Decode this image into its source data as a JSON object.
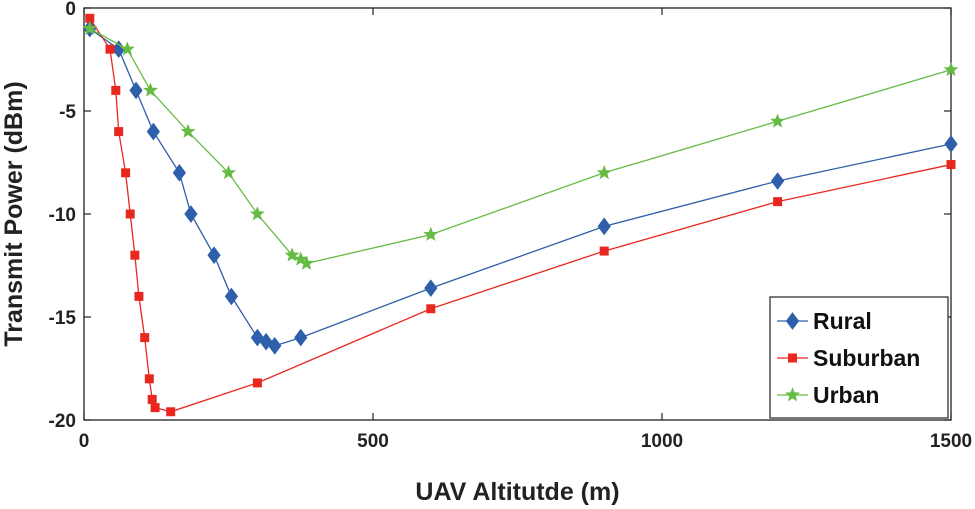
{
  "chart_data": {
    "type": "line",
    "title": "",
    "xlabel": "UAV Altitutde (m)",
    "ylabel": "Transmit Power (dBm)",
    "xlim": [
      0,
      1500
    ],
    "ylim": [
      -20,
      0
    ],
    "xticks": [
      0,
      500,
      1000,
      1500
    ],
    "yticks": [
      0,
      -5,
      -10,
      -15,
      -20
    ],
    "grid": false,
    "legend_position": "bottom-right",
    "series": [
      {
        "name": "Rural",
        "color": "#2e5faa",
        "marker": "diamond",
        "x": [
          10,
          60,
          90,
          120,
          165,
          185,
          225,
          255,
          300,
          315,
          330,
          375,
          600,
          900,
          1200,
          1500
        ],
        "y": [
          -1,
          -2,
          -4,
          -6,
          -8,
          -10,
          -12,
          -14,
          -16,
          -16.2,
          -16.4,
          -16,
          -13.6,
          -10.6,
          -8.4,
          -6.6
        ]
      },
      {
        "name": "Suburban",
        "color": "#e8281e",
        "marker": "square",
        "x": [
          10,
          45,
          55,
          60,
          72,
          80,
          88,
          95,
          105,
          113,
          118,
          123,
          150,
          300,
          600,
          900,
          1200,
          1500
        ],
        "y": [
          -0.5,
          -2,
          -4,
          -6,
          -8,
          -10,
          -12,
          -14,
          -16,
          -18,
          -19,
          -19.4,
          -19.6,
          -18.2,
          -14.6,
          -11.8,
          -9.4,
          -7.6
        ]
      },
      {
        "name": "Urban",
        "color": "#66bb44",
        "marker": "star",
        "x": [
          10,
          75,
          115,
          180,
          250,
          300,
          360,
          375,
          385,
          600,
          900,
          1200,
          1500
        ],
        "y": [
          -1,
          -2,
          -4,
          -6,
          -8,
          -10,
          -12,
          -12.2,
          -12.4,
          -11,
          -8,
          -5.5,
          -3
        ]
      }
    ]
  }
}
